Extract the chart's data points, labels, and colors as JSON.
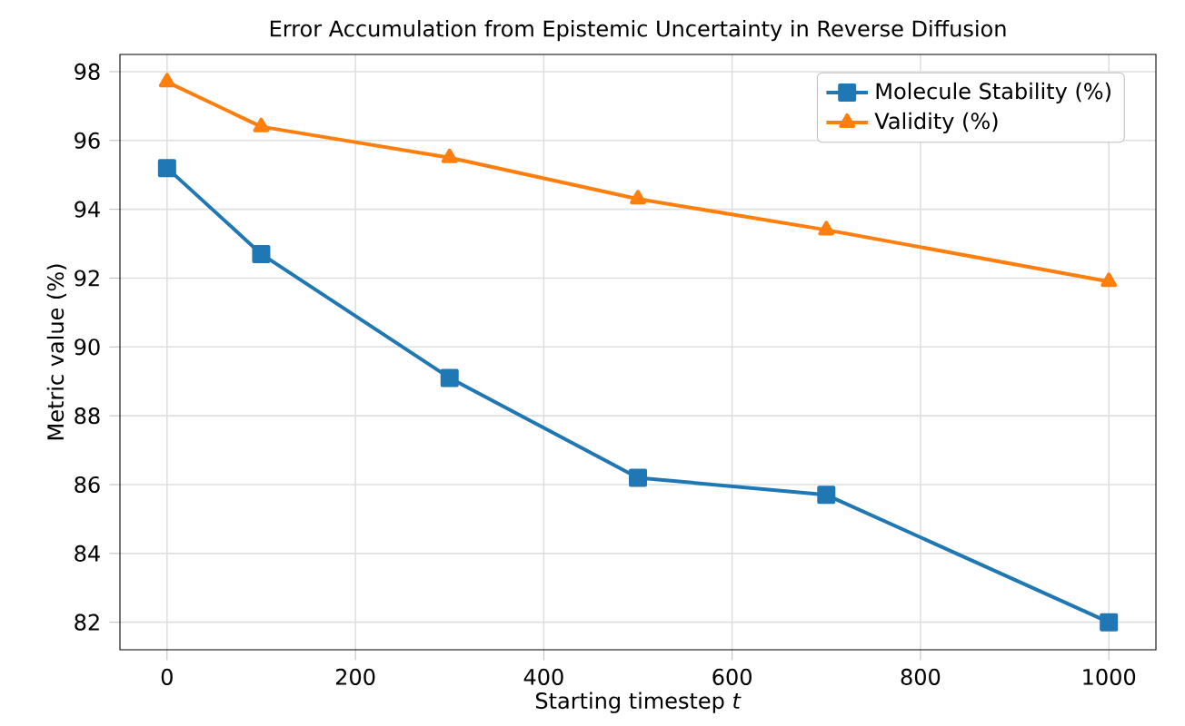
{
  "chart_data": {
    "type": "line",
    "title": "Error Accumulation from Epistemic Uncertainty in Reverse Diffusion",
    "xlabel": "Starting timestep *t*",
    "ylabel": "Metric value (%)",
    "x": [
      0,
      100,
      300,
      500,
      700,
      1000
    ],
    "series": [
      {
        "name": "Molecule Stability (%)",
        "color": "#1f77b4",
        "marker": "square",
        "values": [
          95.2,
          92.7,
          89.1,
          86.2,
          85.7,
          82.0
        ]
      },
      {
        "name": "Validity (%)",
        "color": "#ff7f0e",
        "marker": "triangle",
        "values": [
          97.7,
          96.4,
          95.5,
          94.3,
          93.4,
          91.9
        ]
      }
    ],
    "xlim": [
      -50,
      1050
    ],
    "ylim": [
      81.2,
      98.5
    ],
    "xticks": [
      0,
      200,
      400,
      600,
      800,
      1000
    ],
    "yticks": [
      82,
      84,
      86,
      88,
      90,
      92,
      94,
      96,
      98
    ],
    "grid": true,
    "legend": "top right",
    "line_style": "solid"
  }
}
